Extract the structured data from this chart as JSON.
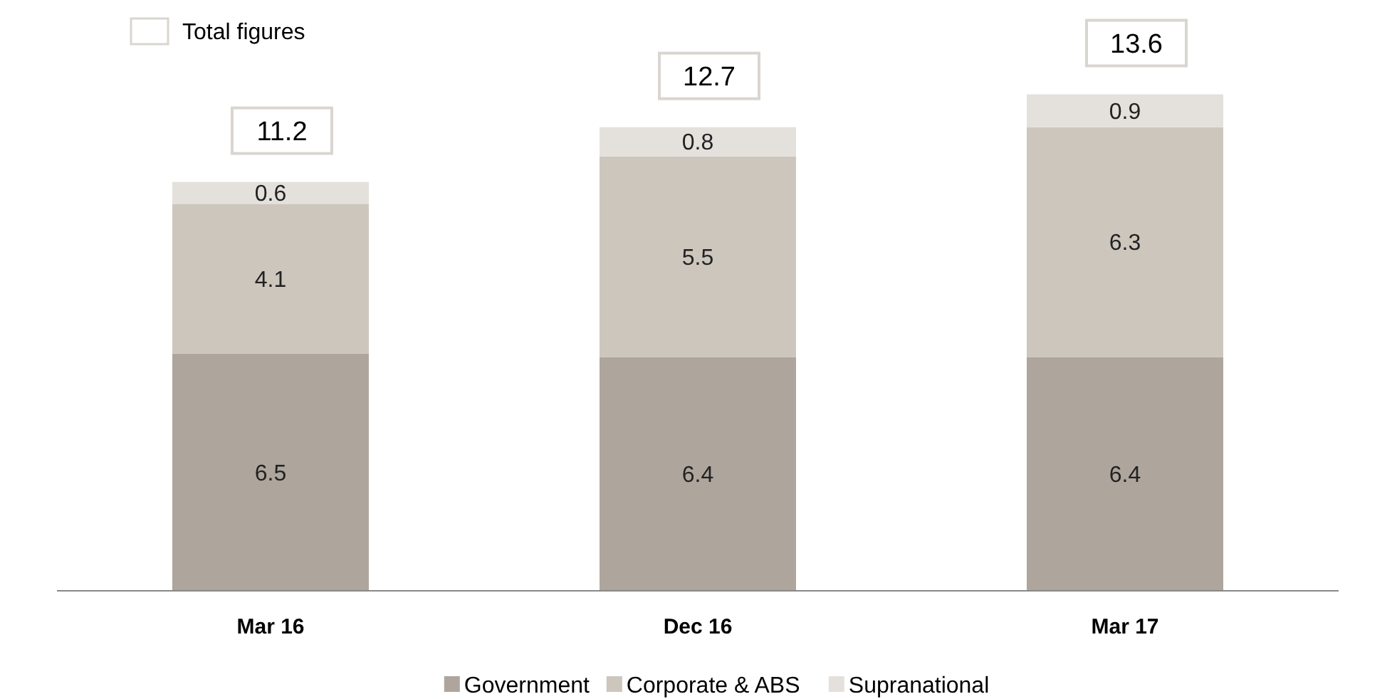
{
  "chart_data": {
    "type": "bar",
    "stacked": true,
    "categories": [
      "Mar 16",
      "Dec 16",
      "Mar 17"
    ],
    "series": [
      {
        "name": "Government",
        "color": "#aea59d",
        "values": [
          6.5,
          6.4,
          6.4
        ]
      },
      {
        "name": "Corporate & ABS",
        "color": "#ccc6bd",
        "values": [
          4.1,
          5.5,
          6.3
        ]
      },
      {
        "name": "Supranational",
        "color": "#e4e1dc",
        "values": [
          0.6,
          0.8,
          0.9
        ]
      }
    ],
    "data_labels": true,
    "totals": [
      "11.2",
      "12.7",
      "13.6"
    ],
    "legend": "bottom",
    "annotations": [
      "Total figures"
    ]
  }
}
